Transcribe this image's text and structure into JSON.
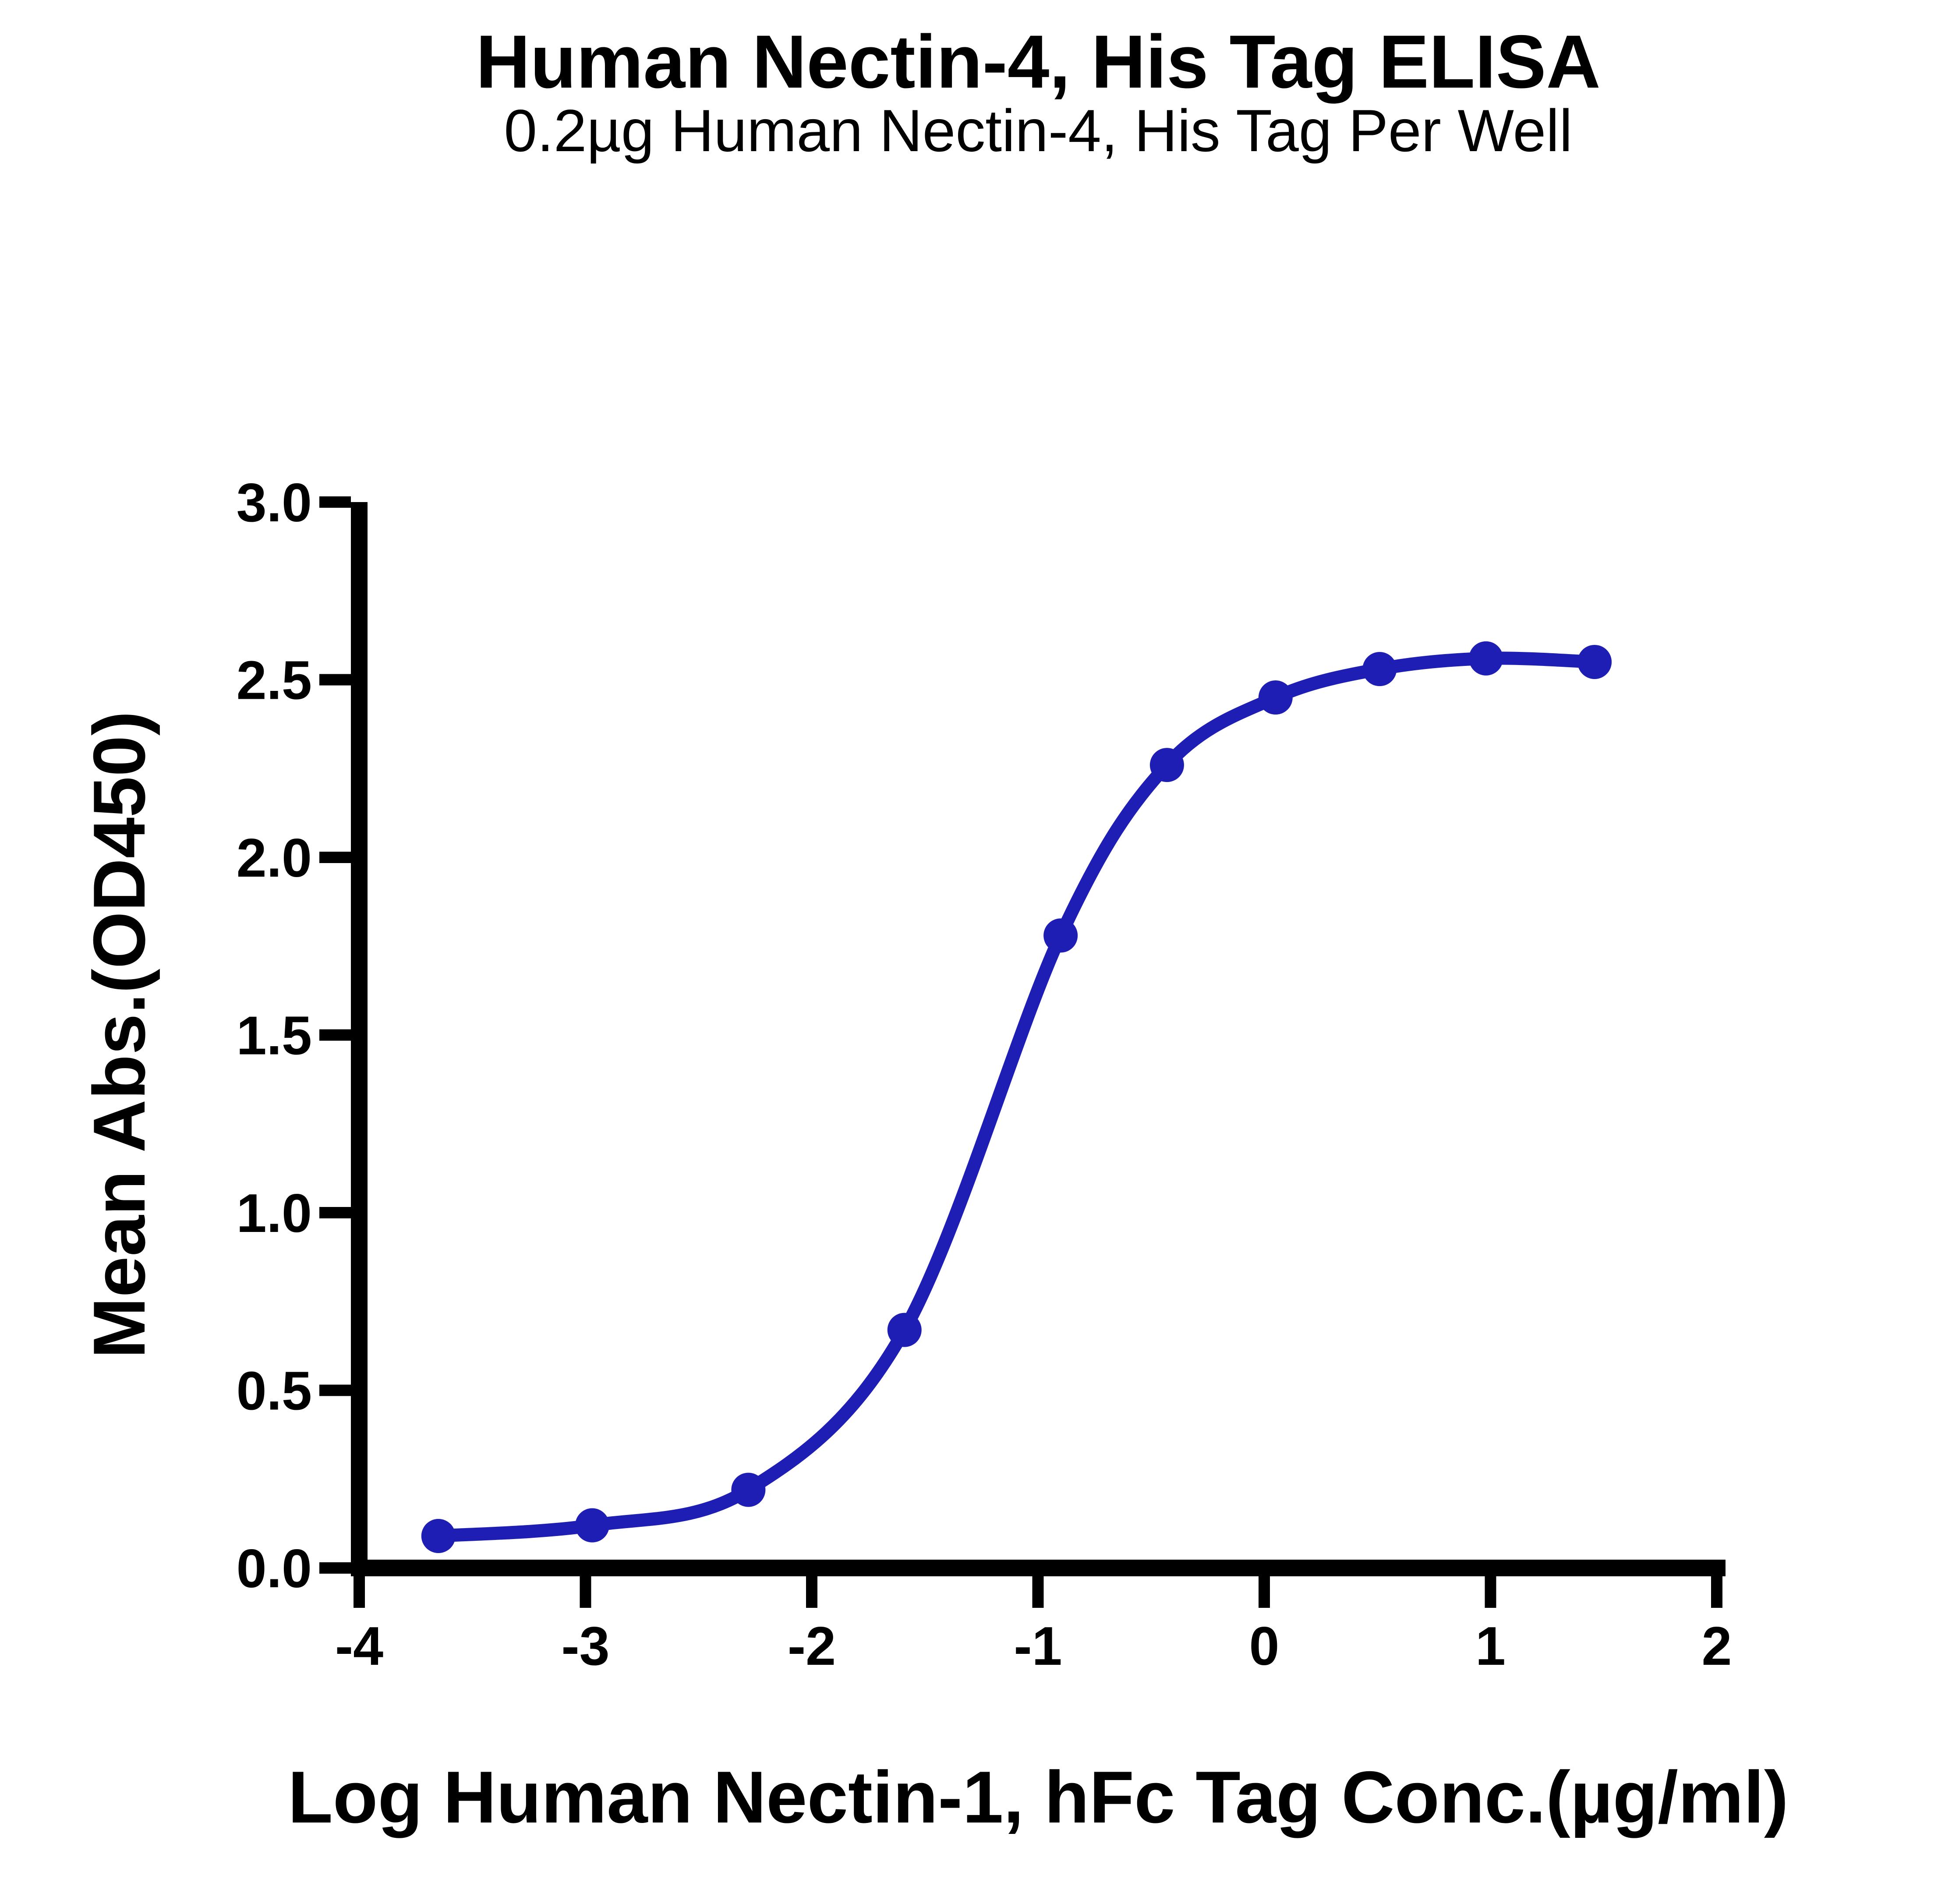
{
  "figure": {
    "title": "Human Nectin-4, His Tag ELISA",
    "subtitle": "0.2µg Human Nectin-4, His Tag Per Well"
  },
  "chart_data": {
    "type": "line",
    "title": "Human Nectin-4, His Tag ELISA",
    "subtitle": "0.2µg Human Nectin-4, His Tag Per Well",
    "xlabel": "Log Human Nectin-1, hFc Tag Conc.(µg/ml)",
    "ylabel": "Mean Abs.(OD450)",
    "xlim": [
      -4,
      2
    ],
    "ylim": [
      0,
      3
    ],
    "x_ticks": [
      -4,
      -3,
      -2,
      -1,
      0,
      1,
      2
    ],
    "x_tick_labels": [
      "-4",
      "-3",
      "-2",
      "-1",
      "0",
      "1",
      "2"
    ],
    "y_ticks": [
      0,
      0.5,
      1,
      1.5,
      2,
      2.5,
      3
    ],
    "y_tick_labels": [
      "0.0",
      "0.5",
      "1.0",
      "1.5",
      "2.0",
      "2.5",
      "3.0"
    ],
    "grid": false,
    "legend": false,
    "series": [
      {
        "name": "Human Nectin-1, hFc Tag",
        "marker": "circle",
        "points": [
          {
            "x": -3.65,
            "y": 0.09
          },
          {
            "x": -2.97,
            "y": 0.12
          },
          {
            "x": -2.28,
            "y": 0.22
          },
          {
            "x": -1.59,
            "y": 0.67
          },
          {
            "x": -0.9,
            "y": 1.78
          },
          {
            "x": -0.43,
            "y": 2.26
          },
          {
            "x": 0.05,
            "y": 2.45
          },
          {
            "x": 0.51,
            "y": 2.53
          },
          {
            "x": 0.98,
            "y": 2.56
          },
          {
            "x": 1.46,
            "y": 2.55
          }
        ]
      }
    ],
    "colors": {
      "curve": "#1e1eb4",
      "axis": "#000000",
      "background": "#ffffff",
      "text": "#000000"
    }
  }
}
